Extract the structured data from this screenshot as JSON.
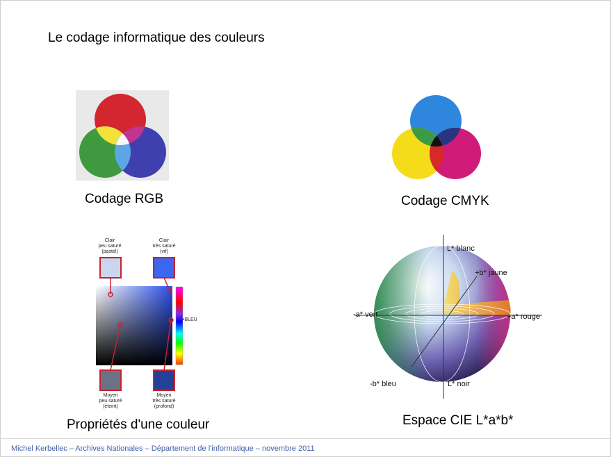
{
  "slide": {
    "title": "Le codage informatique des couleurs",
    "footer": "Michel Kerbellec – Archives Nationales – Département de l'informatique – novembre 2011"
  },
  "rgb": {
    "caption": "Codage RGB"
  },
  "cmyk": {
    "caption": "Codage CMYK"
  },
  "props": {
    "caption": "Propriétés d'une couleur",
    "top_left": [
      "Clair",
      "peu saturé",
      "(pastel)"
    ],
    "top_right": [
      "Clair",
      "très saturé",
      "(vif)"
    ],
    "bottom_left": [
      "Moyen",
      "peu saturé",
      "(éteint)"
    ],
    "bottom_right": [
      "Moyen",
      "très saturé",
      "(profond)"
    ],
    "hue_label": "•BLEU"
  },
  "cie": {
    "caption": "Espace CIE L*a*b*",
    "labels": {
      "l_white": "L* blanc",
      "b_yellow": "+b* jaune",
      "a_green": "-a* vert",
      "a_red": "+a* rouge",
      "b_blue": "-b* bleu",
      "l_black": "L* noir"
    }
  },
  "colors": {
    "red": "#d3262e",
    "green": "#3f9a3f",
    "blue": "#3f3fb0",
    "cyan": "#2f86dd",
    "magenta": "#d11b7a",
    "yellow": "#f4dc1a",
    "footer": "#3f5fa8"
  }
}
